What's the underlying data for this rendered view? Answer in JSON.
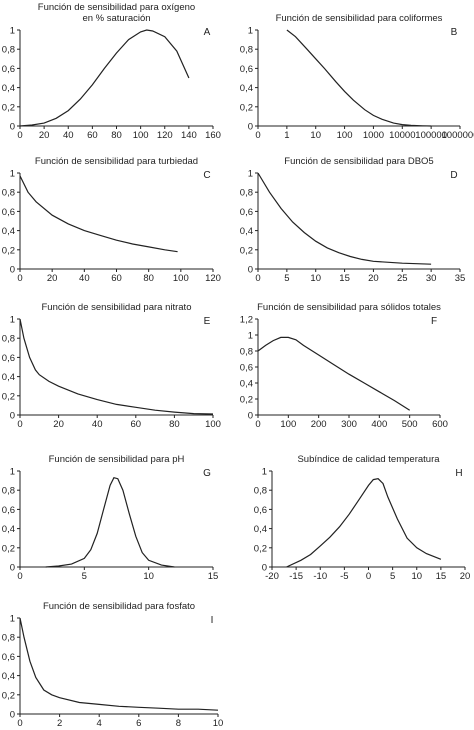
{
  "chart_data": [
    {
      "id": "A",
      "type": "line",
      "letter": "A",
      "title": [
        "Función de sensibilidad para oxígeno",
        "en % saturación"
      ],
      "x_ticks": [
        "0",
        "20",
        "40",
        "60",
        "80",
        "100",
        "120",
        "140",
        "160"
      ],
      "y_ticks": [
        "0",
        "0,2",
        "0,4",
        "0,6",
        "0,8",
        "1"
      ],
      "xlim": [
        0,
        160
      ],
      "ylim": [
        0,
        1
      ],
      "x_scale": "linear",
      "series": [
        {
          "x": [
            0,
            10,
            20,
            30,
            40,
            50,
            60,
            70,
            80,
            90,
            100,
            105,
            110,
            120,
            130,
            140
          ],
          "y": [
            0.0,
            0.01,
            0.03,
            0.08,
            0.16,
            0.28,
            0.43,
            0.6,
            0.76,
            0.9,
            0.98,
            1.0,
            0.99,
            0.93,
            0.78,
            0.5
          ]
        }
      ]
    },
    {
      "id": "B",
      "type": "line",
      "letter": "B",
      "title": [
        "Función de sensibilidad para coliformes"
      ],
      "x_ticks": [
        "0",
        "1",
        "10",
        "100",
        "1000",
        "10000",
        "100000",
        "1000000"
      ],
      "y_ticks": [
        "0",
        "0,2",
        "0,4",
        "0,6",
        "0,8",
        "1"
      ],
      "xlim": [
        0,
        1000000
      ],
      "ylim": [
        0,
        1
      ],
      "x_scale": "log",
      "series": [
        {
          "x": [
            1,
            2,
            5,
            10,
            20,
            50,
            100,
            200,
            500,
            1000,
            2000,
            5000,
            10000,
            20000,
            50000,
            100000
          ],
          "y": [
            1.0,
            0.93,
            0.8,
            0.7,
            0.6,
            0.46,
            0.36,
            0.27,
            0.17,
            0.11,
            0.07,
            0.03,
            0.015,
            0.007,
            0.002,
            0.0
          ]
        }
      ]
    },
    {
      "id": "C",
      "type": "line",
      "letter": "C",
      "title": [
        "Función de sensibilidad para turbiedad"
      ],
      "x_ticks": [
        "0",
        "20",
        "40",
        "60",
        "80",
        "100",
        "120"
      ],
      "y_ticks": [
        "0",
        "0,2",
        "0,4",
        "0,6",
        "0,8",
        "1"
      ],
      "xlim": [
        0,
        120
      ],
      "ylim": [
        0,
        1
      ],
      "x_scale": "linear",
      "series": [
        {
          "x": [
            0,
            5,
            10,
            20,
            30,
            40,
            50,
            60,
            70,
            80,
            90,
            98
          ],
          "y": [
            0.97,
            0.8,
            0.7,
            0.56,
            0.47,
            0.4,
            0.35,
            0.3,
            0.26,
            0.23,
            0.2,
            0.18
          ]
        }
      ]
    },
    {
      "id": "D",
      "type": "line",
      "letter": "D",
      "title": [
        "Función de sensibilidad para DBO5"
      ],
      "x_ticks": [
        "0",
        "5",
        "10",
        "15",
        "20",
        "25",
        "30",
        "35"
      ],
      "y_ticks": [
        "0",
        "0,2",
        "0,4",
        "0,6",
        "0,8",
        "1"
      ],
      "xlim": [
        0,
        35
      ],
      "ylim": [
        0,
        1
      ],
      "x_scale": "linear",
      "series": [
        {
          "x": [
            0,
            2,
            4,
            6,
            8,
            10,
            12,
            14,
            16,
            18,
            20,
            25,
            30
          ],
          "y": [
            1.0,
            0.8,
            0.63,
            0.49,
            0.38,
            0.29,
            0.22,
            0.17,
            0.13,
            0.1,
            0.08,
            0.06,
            0.05
          ]
        }
      ]
    },
    {
      "id": "E",
      "type": "line",
      "letter": "E",
      "title": [
        "Función de sensibilidad para nitrato"
      ],
      "x_ticks": [
        "0",
        "20",
        "40",
        "60",
        "80",
        "100"
      ],
      "y_ticks": [
        "0",
        "0,2",
        "0,4",
        "0,6",
        "0,8",
        "1"
      ],
      "xlim": [
        0,
        100
      ],
      "ylim": [
        0,
        1
      ],
      "x_scale": "linear",
      "series": [
        {
          "x": [
            0,
            2,
            5,
            8,
            10,
            15,
            20,
            30,
            40,
            50,
            60,
            70,
            80,
            90,
            100
          ],
          "y": [
            1.0,
            0.8,
            0.6,
            0.47,
            0.42,
            0.35,
            0.3,
            0.22,
            0.16,
            0.11,
            0.08,
            0.05,
            0.03,
            0.015,
            0.01
          ]
        }
      ]
    },
    {
      "id": "F",
      "type": "line",
      "letter": "F",
      "title": [
        "Función de sensibilidad para sólidos totales"
      ],
      "x_ticks": [
        "0",
        "100",
        "200",
        "300",
        "400",
        "500",
        "600"
      ],
      "y_ticks": [
        "0",
        "0,2",
        "0,4",
        "0,6",
        "0,8",
        "1",
        "1,2"
      ],
      "xlim": [
        0,
        600
      ],
      "ylim": [
        0,
        1.2
      ],
      "x_scale": "linear",
      "series": [
        {
          "x": [
            0,
            25,
            50,
            75,
            100,
            125,
            150,
            200,
            250,
            300,
            350,
            400,
            450,
            500
          ],
          "y": [
            0.8,
            0.87,
            0.93,
            0.97,
            0.97,
            0.94,
            0.87,
            0.75,
            0.63,
            0.51,
            0.4,
            0.29,
            0.18,
            0.06
          ]
        }
      ]
    },
    {
      "id": "G",
      "type": "line",
      "letter": "G",
      "title": [
        "Función de sensibilidad para pH"
      ],
      "x_ticks": [
        "0",
        "5",
        "10",
        "15"
      ],
      "y_ticks": [
        "0",
        "0,2",
        "0,4",
        "0,6",
        "0,8",
        "1"
      ],
      "xlim": [
        0,
        15
      ],
      "ylim": [
        0,
        1
      ],
      "x_scale": "linear",
      "series": [
        {
          "x": [
            2,
            3,
            4,
            5,
            5.5,
            6,
            6.5,
            7,
            7.3,
            7.6,
            8,
            8.5,
            9,
            9.5,
            10,
            11,
            12
          ],
          "y": [
            0.0,
            0.01,
            0.03,
            0.09,
            0.18,
            0.35,
            0.6,
            0.85,
            0.93,
            0.92,
            0.8,
            0.55,
            0.32,
            0.15,
            0.07,
            0.02,
            0.0
          ]
        }
      ]
    },
    {
      "id": "H",
      "type": "line",
      "letter": "H",
      "title": [
        "Subíndice de calidad temperatura"
      ],
      "x_ticks": [
        "-20",
        "-15",
        "-10",
        "-5",
        "0",
        "5",
        "10",
        "15",
        "20"
      ],
      "y_ticks": [
        "0",
        "0,2",
        "0,4",
        "0,6",
        "0,8",
        "1"
      ],
      "xlim": [
        -20,
        20
      ],
      "ylim": [
        0,
        1
      ],
      "x_scale": "linear",
      "series": [
        {
          "x": [
            -17,
            -14,
            -12,
            -10,
            -8,
            -6,
            -4,
            -2,
            0,
            1,
            2,
            3,
            4,
            6,
            8,
            10,
            12,
            15
          ],
          "y": [
            0.0,
            0.07,
            0.13,
            0.22,
            0.31,
            0.42,
            0.55,
            0.7,
            0.85,
            0.91,
            0.92,
            0.87,
            0.73,
            0.5,
            0.3,
            0.2,
            0.14,
            0.08
          ]
        }
      ]
    },
    {
      "id": "I",
      "type": "line",
      "letter": "I",
      "title": [
        "Función de sensibilidad para fosfato"
      ],
      "x_ticks": [
        "0",
        "2",
        "4",
        "6",
        "8",
        "10"
      ],
      "y_ticks": [
        "0",
        "0,2",
        "0,4",
        "0,6",
        "0,8",
        "1"
      ],
      "xlim": [
        0,
        10
      ],
      "ylim": [
        0,
        1
      ],
      "x_scale": "linear",
      "series": [
        {
          "x": [
            0,
            0.2,
            0.5,
            0.8,
            1.2,
            1.6,
            2,
            3,
            4,
            5,
            6,
            7,
            8,
            9,
            10
          ],
          "y": [
            1.0,
            0.8,
            0.55,
            0.38,
            0.25,
            0.2,
            0.17,
            0.12,
            0.1,
            0.08,
            0.07,
            0.06,
            0.05,
            0.05,
            0.04
          ]
        }
      ]
    }
  ]
}
